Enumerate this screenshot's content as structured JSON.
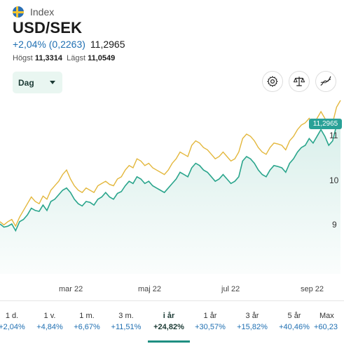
{
  "header": {
    "index_label": "Index",
    "title": "USD/SEK",
    "change": "+2,04% (0,2263)",
    "price": "11,2965",
    "high_label": "Högst",
    "high_value": "11,3314",
    "low_label": "Lägst",
    "low_value": "11,0549"
  },
  "controls": {
    "interval_selected": "Dag",
    "tools": [
      "gear-icon",
      "balance-scale-icon",
      "line-chart-icon"
    ]
  },
  "colors": {
    "primary_line": "#2aa58c",
    "comparison_line": "#e3b73c",
    "accent": "#1f6fb2",
    "tag": "#29a197"
  },
  "chart_data": {
    "type": "line",
    "x_labels": [
      "mar 22",
      "maj 22",
      "jul 22",
      "sep 22"
    ],
    "y_ticks": [
      9,
      10,
      11
    ],
    "ylim": [
      8.6,
      11.6
    ],
    "last_value_label": "11,2965",
    "series": [
      {
        "values": [
          9.0,
          8.93,
          8.95,
          9.0,
          8.85,
          9.05,
          9.1,
          9.2,
          9.35,
          9.3,
          9.28,
          9.42,
          9.3,
          9.5,
          9.55,
          9.65,
          9.75,
          9.8,
          9.7,
          9.55,
          9.45,
          9.4,
          9.5,
          9.48,
          9.42,
          9.55,
          9.6,
          9.7,
          9.6,
          9.55,
          9.68,
          9.72,
          9.85,
          9.95,
          9.9,
          10.05,
          10.0,
          9.9,
          9.95,
          9.85,
          9.8,
          9.75,
          9.7,
          9.8,
          9.9,
          10.0,
          10.15,
          10.1,
          10.05,
          10.25,
          10.35,
          10.3,
          10.2,
          10.15,
          10.05,
          9.95,
          10.0,
          10.1,
          10.0,
          9.9,
          9.95,
          10.05,
          10.4,
          10.5,
          10.45,
          10.35,
          10.2,
          10.1,
          10.05,
          10.2,
          10.3,
          10.28,
          10.25,
          10.15,
          10.35,
          10.45,
          10.6,
          10.7,
          10.75,
          10.9,
          10.8,
          10.95,
          11.1,
          10.95,
          10.75,
          10.85,
          11.2,
          11.3
        ]
      },
      {
        "values": [
          9.05,
          8.98,
          9.05,
          9.1,
          8.95,
          9.15,
          9.3,
          9.45,
          9.6,
          9.5,
          9.45,
          9.62,
          9.55,
          9.75,
          9.85,
          9.95,
          10.1,
          10.2,
          10.0,
          9.85,
          9.75,
          9.7,
          9.8,
          9.75,
          9.7,
          9.85,
          9.9,
          9.95,
          9.88,
          9.85,
          10.0,
          10.05,
          10.2,
          10.3,
          10.25,
          10.45,
          10.4,
          10.3,
          10.35,
          10.25,
          10.2,
          10.15,
          10.1,
          10.2,
          10.35,
          10.45,
          10.6,
          10.55,
          10.5,
          10.75,
          10.85,
          10.8,
          10.7,
          10.65,
          10.55,
          10.45,
          10.5,
          10.6,
          10.5,
          10.4,
          10.45,
          10.6,
          10.9,
          11.0,
          10.95,
          10.85,
          10.7,
          10.6,
          10.55,
          10.7,
          10.8,
          10.78,
          10.75,
          10.65,
          10.85,
          10.95,
          11.1,
          11.2,
          11.25,
          11.35,
          11.2,
          11.35,
          11.5,
          11.35,
          11.15,
          11.25,
          11.6,
          11.75
        ]
      }
    ]
  },
  "periods": [
    {
      "name": "1 d.",
      "value": "+2,04%"
    },
    {
      "name": "1 v.",
      "value": "+4,84%"
    },
    {
      "name": "1 m.",
      "value": "+6,67%"
    },
    {
      "name": "3 m.",
      "value": "+11,51%"
    },
    {
      "name": "i år",
      "value": "+24,82%",
      "active": true
    },
    {
      "name": "1 år",
      "value": "+30,57%"
    },
    {
      "name": "3 år",
      "value": "+15,82%"
    },
    {
      "name": "5 år",
      "value": "+40,46%"
    },
    {
      "name": "Max",
      "value": "+60,23"
    }
  ]
}
